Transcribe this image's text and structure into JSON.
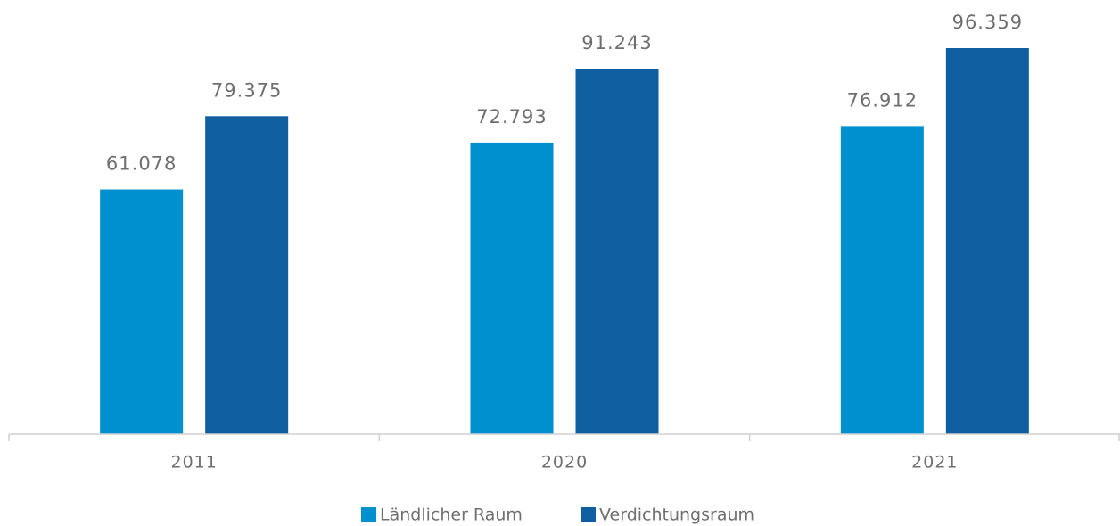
{
  "chart_data": {
    "type": "bar",
    "categories": [
      "2011",
      "2020",
      "2021"
    ],
    "series": [
      {
        "name": "Ländlicher Raum",
        "color": "#0090d0",
        "values": [
          61078,
          72793,
          76912
        ],
        "value_labels": [
          "61.078",
          "72.793",
          "76.912"
        ]
      },
      {
        "name": "Verdichtungsraum",
        "color": "#0f5fa0",
        "values": [
          79375,
          91243,
          96359
        ],
        "value_labels": [
          "79.375",
          "91.243",
          "96.359"
        ]
      }
    ],
    "legend": "bottom"
  }
}
